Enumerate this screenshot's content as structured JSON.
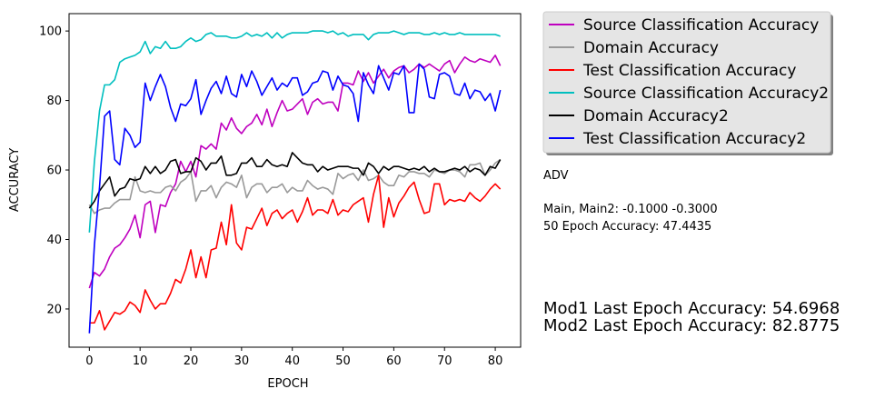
{
  "chart_data": {
    "type": "line",
    "title": "",
    "xlabel": "EPOCH",
    "ylabel": "ACCURACY",
    "xlim": [
      -4,
      85
    ],
    "ylim": [
      9,
      105
    ],
    "xticks": [
      0,
      10,
      20,
      30,
      40,
      50,
      60,
      70,
      80
    ],
    "yticks": [
      20,
      40,
      60,
      80,
      100
    ],
    "grid": false,
    "legend_position": "right-outside-top",
    "series": [
      {
        "name": "Source Classification Accuracy",
        "color": "#bf00bf",
        "x": [
          0,
          1,
          2,
          3,
          4,
          5,
          6,
          7,
          8,
          9,
          10,
          11,
          12,
          13,
          14,
          15,
          16,
          17,
          18,
          19,
          20,
          21,
          22,
          23,
          24,
          25,
          26,
          27,
          28,
          29,
          30,
          31,
          32,
          33,
          34,
          35,
          36,
          37,
          38,
          39,
          40,
          41,
          42,
          43,
          44,
          45,
          46,
          47,
          48,
          49,
          50,
          51,
          52,
          53,
          54,
          55,
          56,
          57,
          58,
          59,
          60,
          61,
          62,
          63,
          64,
          65,
          66,
          67,
          68,
          69,
          70,
          71,
          72,
          73,
          74,
          75,
          76,
          77,
          78,
          79,
          80,
          81
        ],
        "values": [
          26,
          30.5,
          29.5,
          31.5,
          35,
          37.5,
          38.5,
          40.5,
          43,
          47,
          40.5,
          50,
          51,
          42,
          50,
          49.5,
          53.5,
          56,
          62.5,
          59.5,
          62.5,
          58,
          67,
          66,
          67.5,
          66,
          73.5,
          71.5,
          75,
          72,
          70.5,
          72.5,
          73.5,
          76,
          73,
          77.5,
          72.5,
          76.5,
          80,
          77,
          77.5,
          79,
          80.5,
          76,
          79.5,
          80.5,
          79,
          79.5,
          79.5,
          77,
          85,
          85,
          84.5,
          88.5,
          85.5,
          88,
          85,
          87,
          89,
          86.5,
          88.5,
          89.5,
          90,
          88,
          89,
          90.5,
          89.5,
          90.5,
          89.5,
          88.5,
          90.5,
          91.5,
          88,
          90.5,
          92.5,
          91.5,
          91,
          92,
          91.5,
          91,
          93,
          90
        ]
      },
      {
        "name": "Domain Accuracy",
        "color": "#999999",
        "x": [
          0,
          1,
          2,
          3,
          4,
          5,
          6,
          7,
          8,
          9,
          10,
          11,
          12,
          13,
          14,
          15,
          16,
          17,
          18,
          19,
          20,
          21,
          22,
          23,
          24,
          25,
          26,
          27,
          28,
          29,
          30,
          31,
          32,
          33,
          34,
          35,
          36,
          37,
          38,
          39,
          40,
          41,
          42,
          43,
          44,
          45,
          46,
          47,
          48,
          49,
          50,
          51,
          52,
          53,
          54,
          55,
          56,
          57,
          58,
          59,
          60,
          61,
          62,
          63,
          64,
          65,
          66,
          67,
          68,
          69,
          70,
          71,
          72,
          73,
          74,
          75,
          76,
          77,
          78,
          79,
          80,
          81
        ],
        "values": [
          50,
          47.5,
          48.5,
          49,
          49,
          50.5,
          51.5,
          51.5,
          51.5,
          58,
          54,
          53.5,
          54,
          53.5,
          53.5,
          55,
          55.5,
          54,
          56.5,
          57.5,
          59.5,
          51,
          54,
          54,
          55.5,
          52,
          55,
          56.5,
          56,
          55,
          58.5,
          52,
          55,
          56,
          56,
          53.5,
          55,
          55,
          56,
          53.5,
          55,
          54,
          54,
          57,
          55.5,
          54.5,
          55,
          54.5,
          53,
          59,
          57.5,
          58.5,
          59,
          57,
          60,
          57,
          57.5,
          58.5,
          56.5,
          55.5,
          55.5,
          58.5,
          58,
          59.5,
          59.5,
          59,
          59,
          58,
          60,
          59.5,
          59,
          60,
          60,
          59.5,
          58,
          61.5,
          61.5,
          62,
          58.5,
          60,
          62,
          63
        ]
      },
      {
        "name": "Test Classification Accuracy",
        "color": "#ff0000",
        "x": [
          0,
          1,
          2,
          3,
          4,
          5,
          6,
          7,
          8,
          9,
          10,
          11,
          12,
          13,
          14,
          15,
          16,
          17,
          18,
          19,
          20,
          21,
          22,
          23,
          24,
          25,
          26,
          27,
          28,
          29,
          30,
          31,
          32,
          33,
          34,
          35,
          36,
          37,
          38,
          39,
          40,
          41,
          42,
          43,
          44,
          45,
          46,
          47,
          48,
          49,
          50,
          51,
          52,
          53,
          54,
          55,
          56,
          57,
          58,
          59,
          60,
          61,
          62,
          63,
          64,
          65,
          66,
          67,
          68,
          69,
          70,
          71,
          72,
          73,
          74,
          75,
          76,
          77,
          78,
          79,
          80,
          81
        ],
        "values": [
          16,
          16,
          19.5,
          14,
          16.5,
          19,
          18.5,
          19.5,
          22,
          21,
          19,
          25.5,
          22.5,
          20,
          21.5,
          21.5,
          24.5,
          28.5,
          27.5,
          31.5,
          37,
          29,
          35,
          29,
          37,
          37.5,
          45,
          38.5,
          50,
          39,
          37,
          43.5,
          43,
          46,
          49,
          44,
          47.5,
          48.5,
          46,
          47.5,
          48.5,
          45,
          48,
          52,
          47,
          48.5,
          48.5,
          47.5,
          51.5,
          47,
          48.5,
          48,
          50,
          51,
          52,
          45,
          53,
          58.5,
          43.5,
          52,
          46.5,
          50.5,
          52.5,
          55,
          56.5,
          51.5,
          47.5,
          48,
          56,
          56,
          50,
          51.5,
          51,
          51.5,
          51,
          53.5,
          52,
          51,
          52.5,
          54.5,
          56,
          54.5
        ]
      },
      {
        "name": "Source Classification Accuracy2",
        "color": "#00bfbf",
        "x": [
          0,
          1,
          2,
          3,
          4,
          5,
          6,
          7,
          8,
          9,
          10,
          11,
          12,
          13,
          14,
          15,
          16,
          17,
          18,
          19,
          20,
          21,
          22,
          23,
          24,
          25,
          26,
          27,
          28,
          29,
          30,
          31,
          32,
          33,
          34,
          35,
          36,
          37,
          38,
          39,
          40,
          41,
          42,
          43,
          44,
          45,
          46,
          47,
          48,
          49,
          50,
          51,
          52,
          53,
          54,
          55,
          56,
          57,
          58,
          59,
          60,
          61,
          62,
          63,
          64,
          65,
          66,
          67,
          68,
          69,
          70,
          71,
          72,
          73,
          74,
          75,
          76,
          77,
          78,
          79,
          80,
          81
        ],
        "values": [
          42,
          62.5,
          77,
          84.5,
          84.5,
          86,
          91,
          92,
          92.5,
          93,
          94,
          97,
          93.5,
          95.5,
          95,
          97,
          95,
          95,
          95.5,
          97,
          98,
          97,
          97.5,
          99,
          99.5,
          98.5,
          98.5,
          98.5,
          98,
          98,
          98.5,
          99.5,
          98.5,
          99,
          98.5,
          99.5,
          98,
          99.5,
          98,
          99,
          99.5,
          99.5,
          99.5,
          99.5,
          100,
          100,
          100,
          99.5,
          100,
          99,
          99.5,
          98.5,
          99,
          99,
          99,
          97.5,
          99,
          99.5,
          99.5,
          99.5,
          100,
          99.5,
          99,
          99.5,
          99.5,
          99.5,
          99,
          99,
          99.5,
          99,
          99.5,
          99,
          99,
          99.5,
          99,
          99,
          99,
          99,
          99,
          99,
          99,
          98.5
        ]
      },
      {
        "name": "Domain Accuracy2",
        "color": "#000000",
        "x": [
          0,
          1,
          2,
          3,
          4,
          5,
          6,
          7,
          8,
          9,
          10,
          11,
          12,
          13,
          14,
          15,
          16,
          17,
          18,
          19,
          20,
          21,
          22,
          23,
          24,
          25,
          26,
          27,
          28,
          29,
          30,
          31,
          32,
          33,
          34,
          35,
          36,
          37,
          38,
          39,
          40,
          41,
          42,
          43,
          44,
          45,
          46,
          47,
          48,
          49,
          50,
          51,
          52,
          53,
          54,
          55,
          56,
          57,
          58,
          59,
          60,
          61,
          62,
          63,
          64,
          65,
          66,
          67,
          68,
          69,
          70,
          71,
          72,
          73,
          74,
          75,
          76,
          77,
          78,
          79,
          80,
          81
        ],
        "values": [
          49,
          51,
          54,
          56,
          58,
          52.5,
          54.5,
          55,
          57.5,
          57,
          57.5,
          61,
          59,
          61,
          59,
          60,
          62.5,
          63,
          59,
          59.5,
          59.5,
          63.5,
          62.5,
          60,
          62,
          62,
          64,
          58.5,
          58.5,
          59,
          62,
          62,
          63.5,
          61,
          61,
          63,
          61.5,
          61,
          61.5,
          61,
          65,
          63.5,
          62,
          61.5,
          61.5,
          59.5,
          61,
          60,
          60.5,
          61,
          61,
          61,
          60.5,
          60.5,
          58.5,
          62,
          61,
          59,
          61,
          60,
          61,
          61,
          60.5,
          60,
          60.5,
          60,
          61,
          59.5,
          60.5,
          59.5,
          59.5,
          60,
          60.5,
          60,
          61,
          59.5,
          60.5,
          60,
          58.5,
          61,
          60.5,
          63
        ]
      },
      {
        "name": "Test Classification Accuracy2",
        "color": "#0000ff",
        "x": [
          0,
          1,
          2,
          3,
          4,
          5,
          6,
          7,
          8,
          9,
          10,
          11,
          12,
          13,
          14,
          15,
          16,
          17,
          18,
          19,
          20,
          21,
          22,
          23,
          24,
          25,
          26,
          27,
          28,
          29,
          30,
          31,
          32,
          33,
          34,
          35,
          36,
          37,
          38,
          39,
          40,
          41,
          42,
          43,
          44,
          45,
          46,
          47,
          48,
          49,
          50,
          51,
          52,
          53,
          54,
          55,
          56,
          57,
          58,
          59,
          60,
          61,
          62,
          63,
          64,
          65,
          66,
          67,
          68,
          69,
          70,
          71,
          72,
          73,
          74,
          75,
          76,
          77,
          78,
          79,
          80,
          81
        ],
        "values": [
          13,
          38.5,
          55,
          75.5,
          77,
          63,
          61.5,
          72,
          70,
          66.5,
          68,
          85,
          80,
          84,
          87.5,
          84,
          78,
          74,
          79,
          78.5,
          80.5,
          86,
          76,
          80,
          83.5,
          85.5,
          82,
          87,
          82,
          81,
          87.5,
          84,
          88.5,
          85.5,
          81.5,
          84,
          86.5,
          83,
          85,
          84,
          86.5,
          86.5,
          81.5,
          82.5,
          85,
          85.5,
          88.5,
          88,
          83,
          87,
          84.5,
          84,
          82,
          74,
          88,
          84.5,
          82,
          90,
          86.5,
          83,
          88,
          87.5,
          90,
          76.5,
          76.5,
          90.5,
          89,
          81,
          80.5,
          87.5,
          88,
          87,
          82,
          81.5,
          85,
          80.5,
          83,
          82.5,
          80,
          82,
          77,
          83
        ]
      }
    ]
  },
  "annotations": {
    "adv_label": "ADV",
    "main_line": "Main, Main2: -0.1000 -0.3000",
    "epoch50_line": "50 Epoch Accuracy: 47.4435",
    "mod1_line": "Mod1 Last Epoch Accuracy: 54.6968",
    "mod2_line": "Mod2 Last Epoch Accuracy: 82.8775"
  }
}
